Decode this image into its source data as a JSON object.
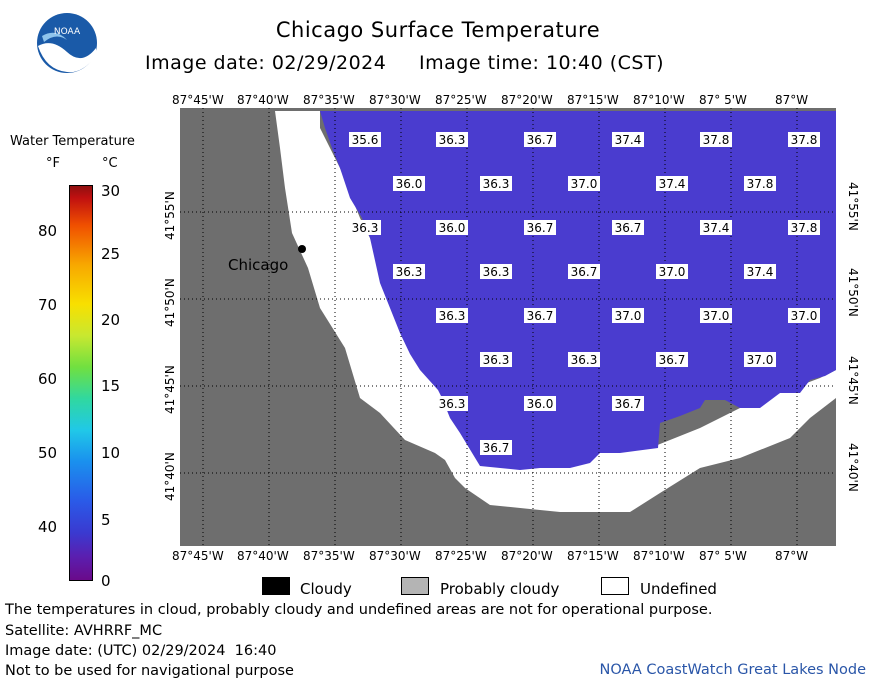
{
  "header": {
    "title": "Chicago Surface Temperature",
    "date_label": "Image date: 02/29/2024",
    "time_label": "Image time: 10:40 (CST)"
  },
  "logo": {
    "text": "NOAA"
  },
  "legend": {
    "title": "Water Temperature",
    "unit_f": "°F",
    "unit_c": "°C",
    "f_ticks": [
      "80",
      "70",
      "60",
      "50",
      "40"
    ],
    "c_ticks": [
      "30",
      "25",
      "20",
      "15",
      "10",
      "5",
      "0"
    ]
  },
  "map": {
    "lon_labels": [
      "87°45'W",
      "87°40'W",
      "87°35'W",
      "87°30'W",
      "87°25'W",
      "87°20'W",
      "87°15'W",
      "87°10'W",
      "87° 5'W",
      "87°W"
    ],
    "lat_labels": [
      "41°55'N",
      "41°50'N",
      "41°45'N",
      "41°40'N"
    ],
    "city_label": "Chicago",
    "temperatures": [
      [
        "35.6",
        "36.3",
        "36.7",
        "37.4",
        "37.8",
        "37.8"
      ],
      [
        "36.0",
        "36.3",
        "37.0",
        "37.4",
        "37.8"
      ],
      [
        "36.3",
        "36.0",
        "36.7",
        "36.7",
        "37.4",
        "37.8"
      ],
      [
        "36.3",
        "36.3",
        "36.7",
        "37.0",
        "37.4"
      ],
      [
        "36.3",
        "36.7",
        "37.0",
        "37.0",
        "37.0"
      ],
      [
        "36.3",
        "36.3",
        "36.7",
        "37.0"
      ],
      [
        "36.3",
        "36.0",
        "36.7"
      ],
      [
        "36.7"
      ]
    ]
  },
  "key": {
    "cloudy": "Cloudy",
    "probably_cloudy": "Probably cloudy",
    "undefined": "Undefined"
  },
  "footer": {
    "note": "The temperatures in cloud, probably cloudy and undefined areas are not for operational purpose.",
    "satellite": "Satellite: AVHRRF_MC",
    "utc_date": "Image date: (UTC) 02/29/2024  16:40",
    "nav_warning": "Not to be used for navigational purpose",
    "credit": "NOAA CoastWatch Great Lakes Node"
  },
  "colors": {
    "land": "#6e6e6e",
    "water": "#4a3ccf",
    "undefined": "#ffffff",
    "credit": "#2a56a8"
  }
}
